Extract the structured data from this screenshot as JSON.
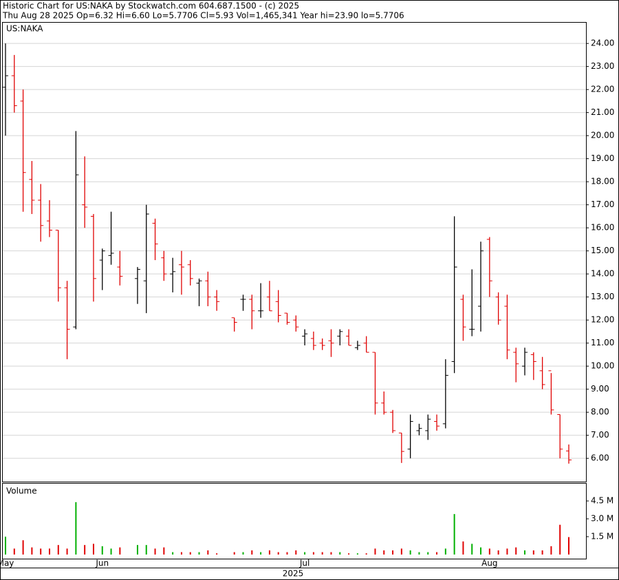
{
  "header": {
    "line1": "Historic Chart for US:NAKA by Stockwatch.com 604.687.1500 - (c) 2025",
    "line2": "Thu Aug 28 2025   Op=6.32   Hi=6.60   Lo=5.7706   Cl=5.93   Vol=1,465,341   Year hi=23.90   lo=5.7706"
  },
  "chart_data": [
    {
      "type": "ohlc",
      "title": "US:NAKA",
      "up_color": "#000000",
      "down_color": "#e00000",
      "grid": true,
      "open": [
        22.1,
        22.6,
        21.5,
        18.1,
        17.2,
        16.3,
        15.9,
        13.4,
        11.7,
        17.0,
        16.5,
        14.6,
        14.8,
        14.3,
        null,
        13.8,
        13.7,
        16.2,
        14.7,
        14.0,
        14.4,
        14.4,
        13.6,
        13.7,
        13.0,
        null,
        12.1,
        12.9,
        12.9,
        12.4,
        13.0,
        12.8,
        12.3,
        12.0,
        11.3,
        11.2,
        11.0,
        11.1,
        11.3,
        11.3,
        10.8,
        11.0,
        10.6,
        8.4,
        8.0,
        7.1,
        6.4,
        7.2,
        7.2,
        7.6,
        7.5,
        10.2,
        12.9,
        11.6,
        12.6,
        15.5,
        13.0,
        12.6,
        10.6,
        10.0,
        10.5,
        9.8,
        9.8,
        7.9,
        6.32
      ],
      "high": [
        24.0,
        23.5,
        22.0,
        18.9,
        17.9,
        17.2,
        15.9,
        13.7,
        20.2,
        19.1,
        16.6,
        15.1,
        16.7,
        15.0,
        null,
        14.3,
        17.0,
        16.4,
        15.0,
        14.7,
        15.0,
        14.6,
        13.8,
        14.1,
        13.3,
        null,
        12.1,
        13.1,
        13.1,
        13.6,
        13.7,
        13.3,
        12.3,
        12.2,
        11.6,
        11.5,
        11.2,
        11.6,
        11.6,
        11.6,
        11.1,
        11.3,
        10.6,
        8.9,
        8.1,
        7.1,
        7.9,
        7.5,
        7.9,
        7.9,
        10.3,
        16.5,
        13.1,
        14.2,
        15.4,
        15.6,
        13.2,
        13.1,
        10.8,
        10.8,
        10.6,
        10.4,
        9.7,
        7.9,
        6.6
      ],
      "low": [
        20.0,
        21.0,
        16.7,
        16.6,
        15.4,
        15.6,
        12.8,
        10.3,
        11.6,
        16.0,
        12.8,
        13.3,
        14.4,
        13.5,
        null,
        12.7,
        12.3,
        14.6,
        13.7,
        13.2,
        13.1,
        13.5,
        12.6,
        12.6,
        12.4,
        null,
        11.5,
        12.4,
        11.6,
        12.1,
        12.4,
        11.9,
        11.8,
        11.5,
        10.9,
        10.7,
        10.7,
        10.4,
        10.9,
        10.9,
        10.7,
        10.6,
        7.9,
        7.9,
        7.1,
        5.8,
        6.0,
        7.0,
        6.8,
        7.2,
        7.3,
        9.7,
        11.1,
        11.3,
        11.5,
        13.0,
        11.8,
        10.3,
        9.3,
        9.6,
        9.4,
        9.0,
        7.9,
        6.0,
        5.7706
      ],
      "close": [
        22.6,
        21.3,
        18.4,
        17.2,
        16.1,
        15.9,
        13.4,
        11.6,
        18.3,
        16.9,
        13.8,
        15.0,
        14.9,
        13.9,
        null,
        14.2,
        16.6,
        15.3,
        14.0,
        14.1,
        14.3,
        13.8,
        13.7,
        13.0,
        12.8,
        null,
        11.9,
        12.9,
        12.4,
        12.4,
        12.4,
        12.2,
        11.9,
        11.7,
        11.4,
        10.9,
        10.9,
        11.0,
        11.5,
        10.9,
        10.9,
        10.6,
        8.4,
        8.0,
        7.2,
        6.3,
        7.6,
        7.3,
        7.7,
        7.4,
        9.6,
        14.3,
        11.7,
        11.6,
        15.0,
        13.7,
        12.0,
        10.7,
        10.1,
        10.6,
        10.2,
        9.2,
        8.1,
        6.4,
        5.93
      ],
      "ylim": [
        4.99,
        24.9
      ],
      "yticks": [
        {
          "value": 6,
          "label": "6.00"
        },
        {
          "value": 7,
          "label": "7.00"
        },
        {
          "value": 8,
          "label": "8.00"
        },
        {
          "value": 9,
          "label": "9.00"
        },
        {
          "value": 10,
          "label": "10.00"
        },
        {
          "value": 11,
          "label": "11.00"
        },
        {
          "value": 12,
          "label": "12.00"
        },
        {
          "value": 13,
          "label": "13.00"
        },
        {
          "value": 14,
          "label": "14.00"
        },
        {
          "value": 15,
          "label": "15.00"
        },
        {
          "value": 16,
          "label": "16.00"
        },
        {
          "value": 17,
          "label": "17.00"
        },
        {
          "value": 18,
          "label": "18.00"
        },
        {
          "value": 19,
          "label": "19.00"
        },
        {
          "value": 20,
          "label": "20.00"
        },
        {
          "value": 21,
          "label": "21.00"
        },
        {
          "value": 22,
          "label": "22.00"
        },
        {
          "value": 23,
          "label": "23.00"
        },
        {
          "value": 24,
          "label": "24.00"
        }
      ]
    },
    {
      "type": "bar",
      "title": "Volume",
      "up_color": "#00b000",
      "down_color": "#e00000",
      "x_title": "2025",
      "categories": [
        "May",
        null,
        null,
        null,
        null,
        null,
        null,
        null,
        null,
        null,
        null,
        "Jun",
        null,
        null,
        null,
        null,
        null,
        null,
        null,
        null,
        null,
        null,
        null,
        null,
        null,
        null,
        null,
        null,
        null,
        null,
        null,
        null,
        null,
        null,
        "Jul",
        null,
        null,
        null,
        null,
        null,
        null,
        null,
        null,
        null,
        null,
        null,
        null,
        null,
        null,
        null,
        null,
        null,
        null,
        null,
        null,
        "Aug",
        null,
        null,
        null,
        null,
        null,
        null,
        null,
        null,
        null
      ],
      "values": [
        1.5,
        0.5,
        1.2,
        0.6,
        0.5,
        0.5,
        0.8,
        0.5,
        4.4,
        0.8,
        0.9,
        0.7,
        0.5,
        0.6,
        null,
        0.8,
        0.8,
        0.5,
        0.6,
        0.2,
        0.2,
        0.2,
        0.2,
        0.35,
        0.1,
        null,
        0.2,
        0.2,
        0.35,
        0.2,
        0.35,
        0.2,
        0.2,
        0.35,
        0.2,
        0.2,
        0.2,
        0.2,
        0.2,
        0.1,
        0.1,
        0.1,
        0.5,
        0.35,
        0.35,
        0.5,
        0.35,
        0.2,
        0.2,
        0.2,
        0.5,
        3.4,
        1.1,
        0.9,
        0.6,
        0.5,
        0.35,
        0.5,
        0.6,
        0.35,
        0.35,
        0.35,
        0.7,
        2.5,
        1.465341
      ],
      "ylim": [
        0,
        5.95
      ],
      "yticks": [
        {
          "value": 1.5,
          "label": "1.5 M"
        },
        {
          "value": 3,
          "label": "3.0 M"
        },
        {
          "value": 4.5,
          "label": "4.5 M"
        }
      ]
    }
  ]
}
